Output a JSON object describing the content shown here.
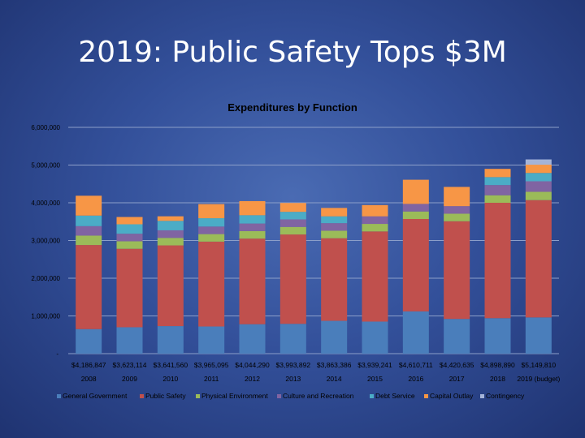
{
  "slide": {
    "title": "2019: Public Safety Tops $3M"
  },
  "colors": {
    "General Government": "#4a7ebb",
    "Public Safety": "#c0504d",
    "Physical Environment": "#9bbb59",
    "Culture and Recreation": "#8064a2",
    "Debt Service": "#4bacc6",
    "Capital Outlay": "#f79646",
    "Contingency": "#a5b4d9"
  },
  "chart_data": {
    "type": "bar",
    "stacked": true,
    "title": "Expenditures by Function",
    "categories": [
      "2008",
      "2009",
      "2010",
      "2011",
      "2012",
      "2013",
      "2014",
      "2015",
      "2016",
      "2017",
      "2018",
      "2019 (budget)"
    ],
    "totals": [
      "$4,186,847",
      "$3,623,114",
      "$3,641,560",
      "$3,965,095",
      "$4,044,290",
      "$3,993,892",
      "$3,863,386",
      "$3,939,241",
      "$4,610,711",
      "$4,420,635",
      "$4,898,890",
      "$5,149,810"
    ],
    "yticks": [
      "-",
      "1,000,000",
      "2,000,000",
      "3,000,000",
      "4,000,000",
      "5,000,000",
      "6,000,000"
    ],
    "ylim": [
      0,
      6000000
    ],
    "grid": true,
    "legend": "bottom",
    "series": [
      {
        "name": "General Government",
        "values": [
          650000,
          700000,
          730000,
          720000,
          780000,
          790000,
          870000,
          850000,
          1120000,
          920000,
          940000,
          960000
        ]
      },
      {
        "name": "Public Safety",
        "values": [
          2230000,
          2080000,
          2140000,
          2250000,
          2270000,
          2370000,
          2190000,
          2390000,
          2450000,
          2590000,
          3060000,
          3110000
        ]
      },
      {
        "name": "Physical Environment",
        "values": [
          250000,
          200000,
          200000,
          200000,
          200000,
          200000,
          200000,
          200000,
          200000,
          200000,
          200000,
          220000
        ]
      },
      {
        "name": "Culture and Recreation",
        "values": [
          250000,
          200000,
          200000,
          200000,
          200000,
          200000,
          200000,
          200000,
          200000,
          200000,
          270000,
          280000
        ]
      },
      {
        "name": "Debt Service",
        "values": [
          280000,
          250000,
          250000,
          220000,
          220000,
          200000,
          180000,
          0,
          0,
          0,
          210000,
          220000
        ]
      },
      {
        "name": "Capital Outlay",
        "values": [
          526847,
          193114,
          121560,
          375095,
          374290,
          233892,
          223386,
          299241,
          640711,
          510635,
          218890,
          219810
        ]
      },
      {
        "name": "Contingency",
        "values": [
          0,
          0,
          0,
          0,
          0,
          0,
          0,
          0,
          0,
          0,
          0,
          140000
        ]
      }
    ]
  }
}
